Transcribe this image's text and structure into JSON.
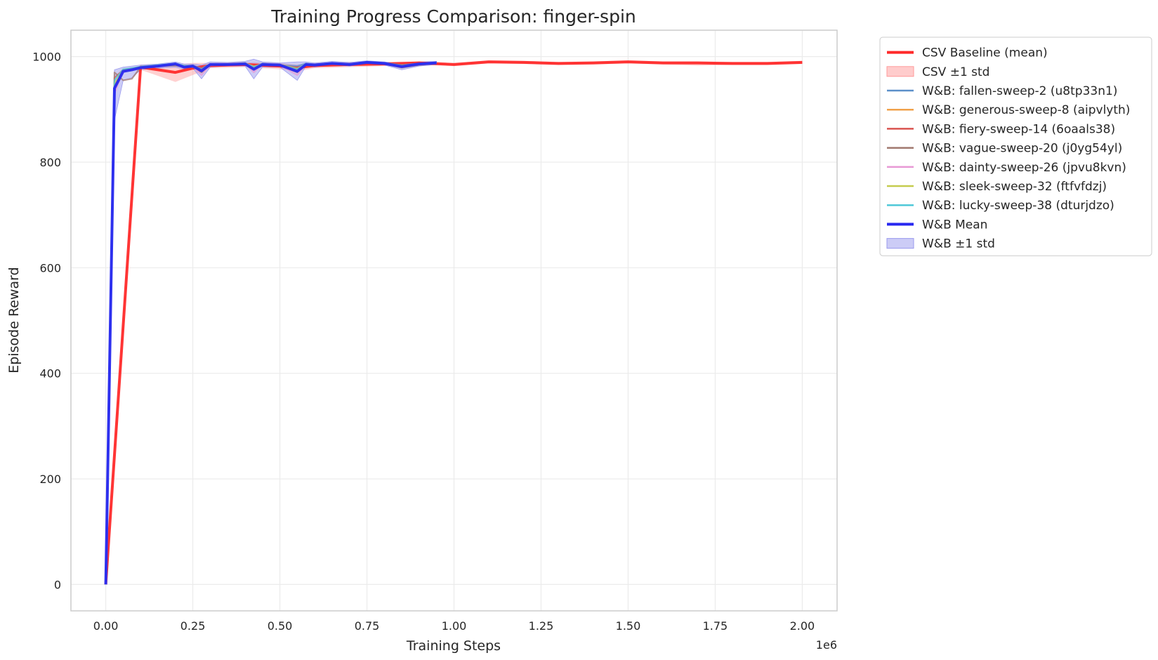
{
  "chart_data": {
    "type": "line",
    "title": "Training Progress Comparison: finger-spin",
    "xlabel": "Training Steps",
    "ylabel": "Episode Reward",
    "x_offset_label": "1e6",
    "xlim": [
      -0.1,
      2.1
    ],
    "ylim": [
      -50,
      1050
    ],
    "xticks": [
      0.0,
      0.25,
      0.5,
      0.75,
      1.0,
      1.25,
      1.5,
      1.75,
      2.0
    ],
    "xtick_labels": [
      "0.00",
      "0.25",
      "0.50",
      "0.75",
      "1.00",
      "1.25",
      "1.50",
      "1.75",
      "2.00"
    ],
    "yticks": [
      0,
      200,
      400,
      600,
      800,
      1000
    ],
    "ytick_labels": [
      "0",
      "200",
      "400",
      "600",
      "800",
      "1000"
    ],
    "grid": true,
    "legend_position": "outside-right-top",
    "csv_baseline": {
      "name": "CSV Baseline (mean)",
      "color": "#ff2a2a",
      "x": [
        0,
        0.1,
        0.2,
        0.25,
        0.3,
        0.4,
        0.5,
        0.55,
        0.6,
        0.7,
        0.8,
        0.9,
        1.0,
        1.1,
        1.2,
        1.3,
        1.4,
        1.5,
        1.6,
        1.7,
        1.8,
        1.9,
        2.0
      ],
      "y": [
        0,
        980,
        970,
        978,
        983,
        985,
        982,
        979,
        983,
        985,
        986,
        988,
        985,
        990,
        989,
        987,
        988,
        990,
        988,
        988,
        987,
        987,
        989
      ],
      "std_name": "CSV ±1 std",
      "std_color": "#ff9a9a",
      "lower": [
        0,
        975,
        952,
        965,
        978,
        980,
        976,
        972,
        978,
        980,
        982,
        985,
        982,
        987,
        986,
        984,
        985,
        987,
        985,
        983,
        984,
        984,
        986
      ],
      "upper": [
        0,
        985,
        985,
        988,
        988,
        990,
        988,
        985,
        988,
        990,
        990,
        991,
        988,
        993,
        992,
        990,
        991,
        993,
        991,
        991,
        990,
        990,
        992
      ]
    },
    "wb_runs": {
      "x": [
        0,
        0.025,
        0.05,
        0.075,
        0.1,
        0.15,
        0.2,
        0.225,
        0.25,
        0.275,
        0.3,
        0.35,
        0.4,
        0.425,
        0.45,
        0.5,
        0.55,
        0.575,
        0.6,
        0.65,
        0.7,
        0.75,
        0.8,
        0.85,
        0.9,
        0.95
      ],
      "series": [
        {
          "name": "W&B: fallen-sweep-2 (u8tp33n1)",
          "color": "#5b8fc9",
          "values": [
            0,
            940,
            975,
            978,
            980,
            982,
            986,
            982,
            983,
            978,
            986,
            985,
            988,
            980,
            987,
            984,
            982,
            987,
            985,
            988,
            986,
            990,
            988,
            984,
            987,
            989
          ]
        },
        {
          "name": "W&B: generous-sweep-8 (aipvlyth)",
          "color": "#f0a14a",
          "values": [
            0,
            945,
            972,
            975,
            978,
            983,
            984,
            983,
            981,
            974,
            985,
            986,
            987,
            982,
            984,
            985,
            978,
            985,
            984,
            987,
            985,
            989,
            987,
            982,
            986,
            988
          ]
        },
        {
          "name": "W&B: fiery-sweep-14 (6oaals38)",
          "color": "#d9534f",
          "values": [
            0,
            960,
            975,
            977,
            981,
            982,
            985,
            980,
            982,
            977,
            985,
            984,
            986,
            978,
            986,
            983,
            976,
            986,
            983,
            986,
            984,
            988,
            986,
            980,
            985,
            987
          ]
        },
        {
          "name": "W&B: vague-sweep-20 (j0yg54yl)",
          "color": "#a0786e",
          "values": [
            0,
            970,
            955,
            958,
            980,
            982,
            983,
            981,
            980,
            970,
            984,
            985,
            985,
            975,
            985,
            984,
            970,
            985,
            983,
            986,
            984,
            988,
            986,
            979,
            984,
            987
          ]
        },
        {
          "name": "W&B: dainty-sweep-26 (jpvu8kvn)",
          "color": "#e89ad6",
          "values": [
            0,
            930,
            973,
            976,
            979,
            981,
            986,
            983,
            982,
            965,
            984,
            985,
            987,
            970,
            986,
            984,
            965,
            986,
            984,
            987,
            985,
            989,
            987,
            981,
            985,
            988
          ]
        },
        {
          "name": "W&B: sleek-sweep-32 (ftfvfdzj)",
          "color": "#c5cc4e",
          "values": [
            0,
            950,
            974,
            977,
            980,
            983,
            985,
            982,
            983,
            975,
            985,
            986,
            986,
            979,
            985,
            985,
            975,
            986,
            984,
            987,
            985,
            988,
            988,
            983,
            986,
            988
          ]
        },
        {
          "name": "W&B: lucky-sweep-38 (dturjdzo)",
          "color": "#4fc8d8",
          "values": [
            0,
            955,
            976,
            978,
            981,
            984,
            987,
            983,
            982,
            976,
            986,
            985,
            987,
            981,
            986,
            984,
            977,
            986,
            985,
            988,
            986,
            989,
            988,
            982,
            986,
            989
          ]
        }
      ],
      "mean": {
        "name": "W&B Mean",
        "color": "#2828f0",
        "values": [
          0,
          940,
          972,
          975,
          979,
          982,
          986,
          980,
          982,
          973,
          985,
          985,
          986,
          976,
          985,
          984,
          972,
          985,
          984,
          987,
          985,
          989,
          987,
          981,
          986,
          988
        ]
      },
      "std": {
        "name": "W&B ±1 std",
        "color": "#9a9aee",
        "lower": [
          0,
          880,
          955,
          960,
          975,
          978,
          980,
          976,
          978,
          958,
          980,
          982,
          982,
          958,
          980,
          980,
          955,
          982,
          980,
          984,
          982,
          986,
          984,
          975,
          982,
          985
        ],
        "upper": [
          0,
          975,
          980,
          982,
          984,
          986,
          990,
          986,
          986,
          984,
          990,
          989,
          991,
          995,
          990,
          988,
          990,
          990,
          988,
          991,
          989,
          992,
          990,
          986,
          990,
          991
        ]
      }
    }
  }
}
